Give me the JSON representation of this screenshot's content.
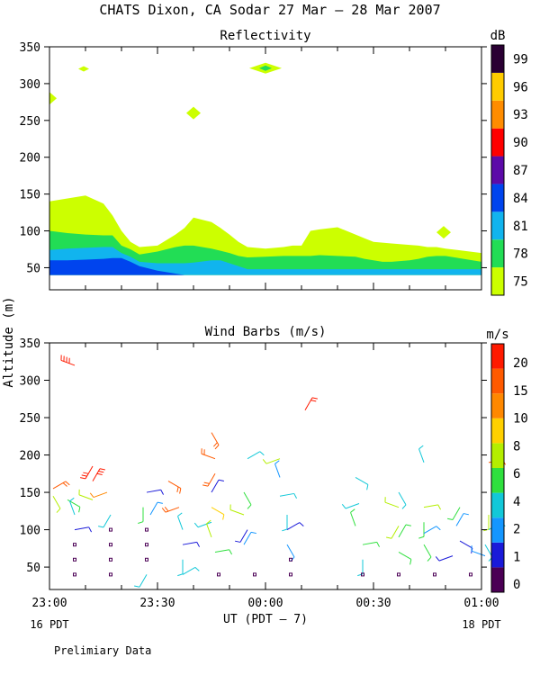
{
  "title": "CHATS Dixon, CA  Sodar  27 Mar – 28 Mar 2007",
  "footer_note": "Prelimiary Data",
  "chart_data": [
    {
      "type": "heatmap",
      "title": "Reflectivity",
      "ylabel": "Altitude (m)",
      "ylim": [
        20,
        350
      ],
      "yticks": [
        50,
        100,
        150,
        200,
        250,
        300,
        350
      ],
      "xlim": [
        0,
        120
      ],
      "x_unit": "minutes after 23:00 UT",
      "colorbar": {
        "label": "dB",
        "tick_labels": [
          "75",
          "78",
          "81",
          "84",
          "87",
          "90",
          "93",
          "96",
          "99"
        ],
        "colors": [
          "#ccff00",
          "#22dd55",
          "#11b4ee",
          "#0044ee",
          "#5c0aa8",
          "#ff0000",
          "#ff8c00",
          "#ffcc00",
          "#2a0033"
        ]
      },
      "layers": [
        {
          "level": "75",
          "color": "#ccff00",
          "x": [
            0,
            10,
            20,
            30,
            35,
            40,
            45,
            50,
            60,
            70,
            75,
            80,
            90,
            95,
            100,
            105,
            110,
            120,
            130,
            135,
            140,
            145,
            150,
            160,
            170,
            175,
            180,
            185,
            190,
            200,
            205,
            210,
            215,
            220,
            230,
            240
          ],
          "y": [
            140,
            144,
            148,
            137,
            121,
            100,
            85,
            78,
            80,
            95,
            104,
            118,
            112,
            104,
            95,
            85,
            78,
            76,
            78,
            80,
            80,
            100,
            102,
            105,
            95,
            90,
            85,
            84,
            83,
            81,
            80,
            78,
            78,
            76,
            73,
            70
          ]
        },
        {
          "level": "78",
          "color": "#22dd55",
          "x": [
            0,
            10,
            20,
            30,
            35,
            40,
            45,
            50,
            60,
            70,
            75,
            80,
            90,
            95,
            100,
            105,
            110,
            120,
            130,
            135,
            140,
            145,
            150,
            160,
            170,
            175,
            180,
            185,
            190,
            200,
            205,
            210,
            215,
            220,
            230,
            240
          ],
          "y": [
            100,
            97,
            95,
            94,
            94,
            80,
            75,
            68,
            72,
            78,
            80,
            80,
            76,
            73,
            70,
            66,
            64,
            65,
            66,
            66,
            66,
            66,
            67,
            66,
            65,
            62,
            60,
            58,
            58,
            60,
            62,
            65,
            66,
            66,
            62,
            58
          ]
        },
        {
          "level": "81",
          "color": "#11b4ee",
          "x": [
            0,
            10,
            20,
            30,
            35,
            40,
            45,
            50,
            60,
            70,
            75,
            80,
            90,
            95,
            100,
            105,
            110,
            120,
            130,
            135,
            140,
            145,
            150,
            160,
            170,
            175,
            180,
            185,
            190,
            200,
            205,
            210,
            215,
            220,
            230,
            240
          ],
          "y": [
            74,
            76,
            77,
            78,
            78,
            70,
            65,
            58,
            56,
            56,
            56,
            57,
            60,
            60,
            56,
            52,
            48,
            48,
            48,
            48,
            48,
            48,
            48,
            48,
            48,
            48,
            48,
            48,
            48,
            48,
            48,
            48,
            48,
            48,
            48,
            48
          ]
        },
        {
          "level": "84",
          "color": "#0044ee",
          "x": [
            0,
            10,
            20,
            30,
            35,
            40,
            45,
            50,
            60,
            70,
            75,
            80
          ],
          "y": [
            60,
            60,
            61,
            62,
            63,
            63,
            58,
            52,
            46,
            42,
            40,
            40
          ]
        }
      ],
      "islands": [
        {
          "level": "75",
          "x": 0,
          "y": 280
        },
        {
          "level": "75",
          "x": 19,
          "y": 320
        },
        {
          "level": "75",
          "x": 80,
          "y": 260
        },
        {
          "level": "75",
          "x": 120,
          "y": 321
        },
        {
          "level": "78",
          "x": 120,
          "y": 321
        },
        {
          "level": "75",
          "x": 219,
          "y": 98
        }
      ]
    },
    {
      "type": "scatter",
      "subtype": "wind_barbs",
      "title": "Wind Barbs (m/s)",
      "ylabel": "Altitude (m)",
      "ylim": [
        20,
        350
      ],
      "yticks": [
        50,
        100,
        150,
        200,
        250,
        300,
        350
      ],
      "xlim": [
        0,
        120
      ],
      "x_unit": "minutes after 23:00 UT",
      "xtick_labels": [
        "23:00",
        "23:30",
        "00:00",
        "00:30",
        "01:00"
      ],
      "xticks": [
        0,
        30,
        60,
        90,
        120
      ],
      "x_sublabels": {
        "left": "16 PDT",
        "right": "18 PDT"
      },
      "xlabel": "UT  (PDT – 7)",
      "colorbar": {
        "label": "m/s",
        "tick_labels": [
          "0",
          "1",
          "2",
          "4",
          "6",
          "8",
          "10",
          "15",
          "20"
        ],
        "colors": [
          "#4b0055",
          "#1a1ad9",
          "#1496ff",
          "#12c8d8",
          "#2fe03e",
          "#b4ee00",
          "#ffd000",
          "#ff8800",
          "#ff5a00",
          "#ff1a00"
        ]
      },
      "points": [
        {
          "t": 1,
          "z": 155,
          "s": 8
        },
        {
          "t": 1,
          "z": 145,
          "s": 5
        },
        {
          "t": 7,
          "z": 320,
          "s": 18
        },
        {
          "t": 12,
          "z": 185,
          "s": 14
        },
        {
          "t": 12,
          "z": 165,
          "s": 13
        },
        {
          "t": 5,
          "z": 140,
          "s": 4
        },
        {
          "t": 16,
          "z": 150,
          "s": 7
        },
        {
          "t": 7,
          "z": 120,
          "s": 3
        },
        {
          "t": 7,
          "z": 100,
          "s": 1
        },
        {
          "t": 7,
          "z": 80,
          "s": 0
        },
        {
          "t": 7,
          "z": 60,
          "s": 0
        },
        {
          "t": 7,
          "z": 40,
          "s": 0
        },
        {
          "t": 12,
          "z": 140,
          "s": 5
        },
        {
          "t": 17,
          "z": 120,
          "s": 3
        },
        {
          "t": 17,
          "z": 100,
          "s": 0
        },
        {
          "t": 17,
          "z": 80,
          "s": 0
        },
        {
          "t": 17,
          "z": 60,
          "s": 0
        },
        {
          "t": 17,
          "z": 40,
          "s": 0
        },
        {
          "t": 27,
          "z": 150,
          "s": 1
        },
        {
          "t": 26,
          "z": 130,
          "s": 4
        },
        {
          "t": 27,
          "z": 100,
          "s": 0
        },
        {
          "t": 27,
          "z": 80,
          "s": 0
        },
        {
          "t": 27,
          "z": 60,
          "s": 0
        },
        {
          "t": 27,
          "z": 40,
          "s": 3
        },
        {
          "t": 28,
          "z": 120,
          "s": 2
        },
        {
          "t": 33,
          "z": 165,
          "s": 8
        },
        {
          "t": 36,
          "z": 130,
          "s": 8
        },
        {
          "t": 37,
          "z": 100,
          "s": 3
        },
        {
          "t": 37,
          "z": 80,
          "s": 1
        },
        {
          "t": 37,
          "z": 60,
          "s": 3
        },
        {
          "t": 37,
          "z": 40,
          "s": 3
        },
        {
          "t": 45,
          "z": 230,
          "s": 8
        },
        {
          "t": 46,
          "z": 195,
          "s": 8
        },
        {
          "t": 46,
          "z": 175,
          "s": 8
        },
        {
          "t": 45,
          "z": 150,
          "s": 1
        },
        {
          "t": 45,
          "z": 130,
          "s": 6
        },
        {
          "t": 45,
          "z": 110,
          "s": 3
        },
        {
          "t": 45,
          "z": 90,
          "s": 5
        },
        {
          "t": 46,
          "z": 70,
          "s": 4
        },
        {
          "t": 47,
          "z": 40,
          "s": 0
        },
        {
          "t": 55,
          "z": 195,
          "s": 3
        },
        {
          "t": 54,
          "z": 150,
          "s": 4
        },
        {
          "t": 54,
          "z": 120,
          "s": 5
        },
        {
          "t": 55,
          "z": 100,
          "s": 1
        },
        {
          "t": 54,
          "z": 80,
          "s": 2
        },
        {
          "t": 57,
          "z": 40,
          "s": 0
        },
        {
          "t": 64,
          "z": 195,
          "s": 5
        },
        {
          "t": 64,
          "z": 170,
          "s": 2
        },
        {
          "t": 64,
          "z": 145,
          "s": 3
        },
        {
          "t": 66,
          "z": 120,
          "s": 3
        },
        {
          "t": 66,
          "z": 100,
          "s": 1
        },
        {
          "t": 66,
          "z": 80,
          "s": 2
        },
        {
          "t": 67,
          "z": 60,
          "s": 0
        },
        {
          "t": 67,
          "z": 40,
          "s": 0
        },
        {
          "t": 71,
          "z": 260,
          "s": 9
        },
        {
          "t": 85,
          "z": 170,
          "s": 3
        },
        {
          "t": 86,
          "z": 135,
          "s": 3
        },
        {
          "t": 85,
          "z": 105,
          "s": 4
        },
        {
          "t": 87,
          "z": 80,
          "s": 4
        },
        {
          "t": 87,
          "z": 60,
          "s": 3
        },
        {
          "t": 87,
          "z": 40,
          "s": 0
        },
        {
          "t": 97,
          "z": 150,
          "s": 3
        },
        {
          "t": 97,
          "z": 130,
          "s": 5
        },
        {
          "t": 97,
          "z": 105,
          "s": 5
        },
        {
          "t": 97,
          "z": 90,
          "s": 4
        },
        {
          "t": 97,
          "z": 70,
          "s": 4
        },
        {
          "t": 97,
          "z": 40,
          "s": 0
        },
        {
          "t": 104,
          "z": 190,
          "s": 3
        },
        {
          "t": 104,
          "z": 130,
          "s": 5
        },
        {
          "t": 104,
          "z": 110,
          "s": 4
        },
        {
          "t": 104,
          "z": 95,
          "s": 2
        },
        {
          "t": 104,
          "z": 80,
          "s": 4
        },
        {
          "t": 107,
          "z": 40,
          "s": 0
        },
        {
          "t": 114,
          "z": 130,
          "s": 4
        },
        {
          "t": 113,
          "z": 105,
          "s": 2
        },
        {
          "t": 114,
          "z": 85,
          "s": 1
        },
        {
          "t": 112,
          "z": 65,
          "s": 1
        },
        {
          "t": 117,
          "z": 40,
          "s": 0
        },
        {
          "t": 122,
          "z": 190,
          "s": 8
        },
        {
          "t": 122,
          "z": 120,
          "s": 5
        },
        {
          "t": 122,
          "z": 100,
          "s": 3
        },
        {
          "t": 121,
          "z": 80,
          "s": 3
        },
        {
          "t": 121,
          "z": 65,
          "s": 2
        }
      ]
    }
  ]
}
